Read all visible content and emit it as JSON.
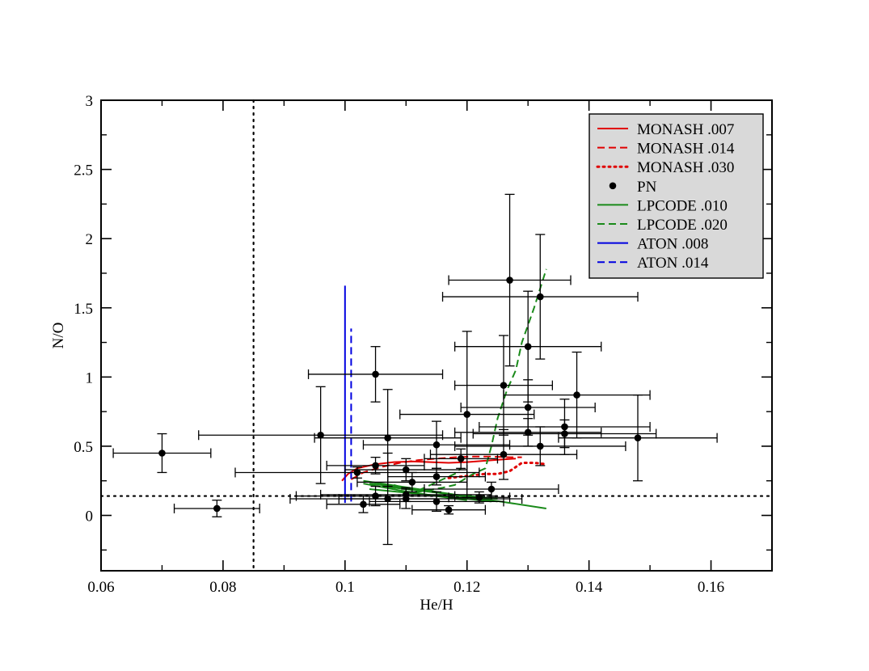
{
  "chart_data": {
    "type": "scatter",
    "title": "",
    "xlabel": "He/H",
    "ylabel": "N/O",
    "xlim": [
      0.06,
      0.17
    ],
    "ylim": [
      -0.4,
      3.0
    ],
    "x_ticks": [
      0.06,
      0.08,
      0.1,
      0.12,
      0.14,
      0.16
    ],
    "x_tick_labels": [
      "0.06",
      "0.08",
      "0.1",
      "0.12",
      "0.14",
      "0.16"
    ],
    "y_ticks": [
      0,
      0.5,
      1,
      1.5,
      2,
      2.5,
      3
    ],
    "y_tick_labels": [
      "0",
      "0.5",
      "1",
      "1.5",
      "2",
      "2.5",
      "3"
    ],
    "grid": false,
    "legend_position": "top-right",
    "reference_lines": [
      {
        "orientation": "vertical",
        "value": 0.085,
        "style": "dotted",
        "color": "#000000"
      },
      {
        "orientation": "horizontal",
        "value": 0.14,
        "style": "dotted",
        "color": "#000000"
      }
    ],
    "series": [
      {
        "name": "MONASH .007",
        "kind": "line",
        "style": "solid",
        "color": "#e00000",
        "x": [
          0.0995,
          0.1005,
          0.102,
          0.105,
          0.108,
          0.111,
          0.114,
          0.117,
          0.12,
          0.123,
          0.126,
          0.128
        ],
        "y": [
          0.25,
          0.3,
          0.34,
          0.37,
          0.385,
          0.39,
          0.385,
          0.38,
          0.385,
          0.395,
          0.405,
          0.41
        ]
      },
      {
        "name": "MONASH .014",
        "kind": "line",
        "style": "dashed",
        "color": "#e00000",
        "x": [
          0.101,
          0.103,
          0.106,
          0.109,
          0.112,
          0.115,
          0.118,
          0.121,
          0.124,
          0.127,
          0.129
        ],
        "y": [
          0.26,
          0.31,
          0.35,
          0.38,
          0.4,
          0.41,
          0.42,
          0.425,
          0.425,
          0.42,
          0.42
        ]
      },
      {
        "name": "MONASH .030",
        "kind": "line",
        "style": "dotted",
        "color": "#e00000",
        "x": [
          0.117,
          0.119,
          0.121,
          0.123,
          0.125,
          0.127,
          0.129,
          0.131,
          0.133
        ],
        "y": [
          0.27,
          0.28,
          0.29,
          0.3,
          0.3,
          0.32,
          0.38,
          0.38,
          0.37
        ]
      },
      {
        "name": "PN",
        "kind": "points",
        "color": "#000000",
        "points": [
          {
            "x": 0.07,
            "y": 0.45,
            "xerr": 0.008,
            "yerr": 0.14
          },
          {
            "x": 0.079,
            "y": 0.05,
            "xerr": 0.007,
            "yerr": 0.06
          },
          {
            "x": 0.096,
            "y": 0.58,
            "xerr": 0.02,
            "yerr": 0.35
          },
          {
            "x": 0.102,
            "y": 0.31,
            "xerr": 0.02,
            "yerr": 0.04
          },
          {
            "x": 0.103,
            "y": 0.08,
            "xerr": 0.006,
            "yerr": 0.06
          },
          {
            "x": 0.105,
            "y": 1.02,
            "xerr": 0.011,
            "yerr": 0.2
          },
          {
            "x": 0.105,
            "y": 0.36,
            "xerr": 0.008,
            "yerr": 0.06
          },
          {
            "x": 0.105,
            "y": 0.14,
            "xerr": 0.013,
            "yerr": 0.07
          },
          {
            "x": 0.107,
            "y": 0.56,
            "xerr": 0.012,
            "yerr": 0.35
          },
          {
            "x": 0.107,
            "y": 0.12,
            "xerr": 0.008,
            "yerr": 0.33
          },
          {
            "x": 0.11,
            "y": 0.33,
            "xerr": 0.01,
            "yerr": 0.08
          },
          {
            "x": 0.11,
            "y": 0.15,
            "xerr": 0.014,
            "yerr": 0.05
          },
          {
            "x": 0.11,
            "y": 0.12,
            "xerr": 0.019,
            "yerr": 0.07
          },
          {
            "x": 0.111,
            "y": 0.24,
            "xerr": 0.009,
            "yerr": 0.07
          },
          {
            "x": 0.115,
            "y": 0.51,
            "xerr": 0.012,
            "yerr": 0.17
          },
          {
            "x": 0.115,
            "y": 0.28,
            "xerr": 0.008,
            "yerr": 0.06
          },
          {
            "x": 0.115,
            "y": 0.1,
            "xerr": 0.011,
            "yerr": 0.07
          },
          {
            "x": 0.117,
            "y": 0.04,
            "xerr": 0.006,
            "yerr": 0.03
          },
          {
            "x": 0.119,
            "y": 0.41,
            "xerr": 0.006,
            "yerr": 0.07
          },
          {
            "x": 0.12,
            "y": 0.73,
            "xerr": 0.011,
            "yerr": 0.6
          },
          {
            "x": 0.122,
            "y": 0.13,
            "xerr": 0.005,
            "yerr": 0.04
          },
          {
            "x": 0.124,
            "y": 0.19,
            "xerr": 0.011,
            "yerr": 0.05
          },
          {
            "x": 0.126,
            "y": 0.94,
            "xerr": 0.008,
            "yerr": 0.36
          },
          {
            "x": 0.126,
            "y": 0.44,
            "xerr": 0.012,
            "yerr": 0.18
          },
          {
            "x": 0.127,
            "y": 1.7,
            "xerr": 0.01,
            "yerr": 0.62
          },
          {
            "x": 0.13,
            "y": 1.22,
            "xerr": 0.012,
            "yerr": 0.4
          },
          {
            "x": 0.13,
            "y": 0.78,
            "xerr": 0.011,
            "yerr": 0.2
          },
          {
            "x": 0.13,
            "y": 0.6,
            "xerr": 0.012,
            "yerr": 0.1
          },
          {
            "x": 0.132,
            "y": 1.58,
            "xerr": 0.016,
            "yerr": 0.45
          },
          {
            "x": 0.132,
            "y": 0.5,
            "xerr": 0.014,
            "yerr": 0.14
          },
          {
            "x": 0.136,
            "y": 0.64,
            "xerr": 0.014,
            "yerr": 0.2
          },
          {
            "x": 0.136,
            "y": 0.59,
            "xerr": 0.015,
            "yerr": 0.1
          },
          {
            "x": 0.138,
            "y": 0.87,
            "xerr": 0.012,
            "yerr": 0.31
          },
          {
            "x": 0.148,
            "y": 0.56,
            "xerr": 0.013,
            "yerr": 0.31
          }
        ]
      },
      {
        "name": "LPCODE .010",
        "kind": "line",
        "style": "solid",
        "color": "#1a8a1a",
        "paths": [
          {
            "x": [
              0.103,
              0.109,
              0.115,
              0.121,
              0.127,
              0.133
            ],
            "y": [
              0.25,
              0.21,
              0.17,
              0.13,
              0.09,
              0.05
            ]
          },
          {
            "x": [
              0.104,
              0.11,
              0.116,
              0.122,
              0.125
            ],
            "y": [
              0.23,
              0.2,
              0.16,
              0.12,
              0.1
            ]
          },
          {
            "x": [
              0.104,
              0.111,
              0.118,
              0.124
            ],
            "y": [
              0.19,
              0.16,
              0.13,
              0.1
            ]
          },
          {
            "x": [
              0.103,
              0.109,
              0.115,
              0.12
            ],
            "y": [
              0.23,
              0.18,
              0.14,
              0.11
            ]
          },
          {
            "x": [
              0.106,
              0.112,
              0.118,
              0.125
            ],
            "y": [
              0.21,
              0.18,
              0.15,
              0.12
            ]
          }
        ]
      },
      {
        "name": "LPCODE .020",
        "kind": "line",
        "style": "dashed",
        "color": "#1a8a1a",
        "paths": [
          {
            "x": [
              0.108,
              0.112,
              0.116,
              0.118,
              0.121,
              0.123,
              0.124,
              0.125,
              0.1265,
              0.128,
              0.129,
              0.131,
              0.133
            ],
            "y": [
              0.22,
              0.17,
              0.2,
              0.22,
              0.3,
              0.34,
              0.5,
              0.7,
              0.9,
              1.05,
              1.25,
              1.5,
              1.78
            ]
          },
          {
            "x": [
              0.112,
              0.114,
              0.116,
              0.118,
              0.119
            ],
            "y": [
              0.18,
              0.22,
              0.26,
              0.3,
              0.34
            ]
          }
        ]
      },
      {
        "name": "ATON .008",
        "kind": "line",
        "style": "solid",
        "color": "#0000e0",
        "x": [
          0.1,
          0.1
        ],
        "y": [
          0.09,
          1.66
        ]
      },
      {
        "name": "ATON .014",
        "kind": "line",
        "style": "dashed",
        "color": "#0000e0",
        "x": [
          0.101,
          0.101
        ],
        "y": [
          0.1,
          1.35
        ]
      }
    ],
    "legend": [
      {
        "label": "MONASH .007",
        "marker": "line",
        "style": "solid",
        "color": "#e00000"
      },
      {
        "label": "MONASH .014",
        "marker": "line",
        "style": "dashed",
        "color": "#e00000"
      },
      {
        "label": "MONASH .030",
        "marker": "line",
        "style": "dotted",
        "color": "#e00000"
      },
      {
        "label": "PN",
        "marker": "circle",
        "style": "none",
        "color": "#000000"
      },
      {
        "label": "LPCODE .010",
        "marker": "line",
        "style": "solid",
        "color": "#1a8a1a"
      },
      {
        "label": "LPCODE .020",
        "marker": "line",
        "style": "dashed",
        "color": "#1a8a1a"
      },
      {
        "label": "ATON .008",
        "marker": "line",
        "style": "solid",
        "color": "#0000e0"
      },
      {
        "label": "ATON .014",
        "marker": "line",
        "style": "dashed",
        "color": "#0000e0"
      }
    ],
    "legend_background": "#d9d9d9"
  }
}
